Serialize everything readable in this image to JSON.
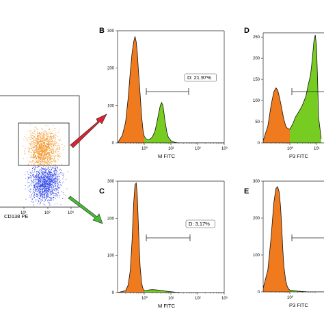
{
  "colors": {
    "positive_fill": "#77cc22",
    "negative_fill": "#f07a1e",
    "scatter_upper": "#f39324",
    "scatter_lower": "#2a40e8",
    "arrow_upper": "#e0202f",
    "arrow_lower": "#42bf30",
    "outline": "#111111"
  },
  "chart_data": [
    {
      "id": "A",
      "type": "scatter",
      "letter": "",
      "xlabel": "CD138 PE",
      "ylabel": "",
      "xscale": "log",
      "xlim": [
        1,
        1000
      ],
      "x_ticks": [
        "10¹",
        "10²",
        "10³"
      ],
      "populations": [
        {
          "name": "",
          "color": "#f39324",
          "gate": "upper rectangle",
          "x_center": 30,
          "y_level": "high"
        },
        {
          "name": "",
          "color": "#2a40e8",
          "gate": "",
          "x_center": 30,
          "y_level": "low"
        }
      ]
    },
    {
      "id": "B",
      "type": "area",
      "letter": "B",
      "xlabel": "M FITC",
      "ylabel": "",
      "xscale": "log",
      "xlim": [
        0.1,
        1000
      ],
      "ylim": [
        0,
        300
      ],
      "y_ticks": [
        0,
        100,
        200,
        300
      ],
      "x_ticks": [
        "10⁰",
        "10¹",
        "10²",
        "10³"
      ],
      "gate_label": "D: 21.97%",
      "x": [
        0.1,
        0.15,
        0.2,
        0.25,
        0.3,
        0.35,
        0.4,
        0.45,
        0.5,
        0.55,
        0.6,
        0.7,
        0.8,
        0.9,
        1.0,
        1.2,
        1.5,
        2.0,
        2.5,
        3.0,
        3.5,
        4.0,
        4.5,
        5.0,
        5.5,
        6.0,
        7.0,
        8.0,
        10,
        12,
        15,
        20,
        30,
        100,
        1000
      ],
      "values": [
        0,
        20,
        55,
        120,
        190,
        240,
        270,
        285,
        270,
        240,
        200,
        130,
        70,
        35,
        18,
        10,
        8,
        15,
        30,
        55,
        80,
        100,
        108,
        100,
        80,
        60,
        30,
        15,
        6,
        3,
        1,
        0,
        0,
        0,
        0
      ],
      "negative_until_x": 1.0
    },
    {
      "id": "C",
      "type": "area",
      "letter": "C",
      "xlabel": "M FITC",
      "ylabel": "",
      "xscale": "log",
      "xlim": [
        0.1,
        1000
      ],
      "ylim": [
        0,
        300
      ],
      "y_ticks": [
        0,
        100,
        200,
        300
      ],
      "x_ticks": [
        "10⁰",
        "10¹",
        "10²",
        "10³"
      ],
      "gate_label": "D: 3.17%",
      "x": [
        0.1,
        0.2,
        0.25,
        0.3,
        0.35,
        0.4,
        0.45,
        0.5,
        0.55,
        0.6,
        0.65,
        0.7,
        0.8,
        0.9,
        1.0,
        1.2,
        1.5,
        2.0,
        3.0,
        5.0,
        8.0,
        15,
        30,
        100,
        1000
      ],
      "values": [
        0,
        5,
        20,
        60,
        140,
        240,
        290,
        295,
        260,
        190,
        120,
        70,
        25,
        10,
        6,
        5,
        7,
        8,
        7,
        5,
        3,
        1,
        0,
        0,
        0
      ],
      "negative_until_x": 1.0
    },
    {
      "id": "D",
      "type": "area",
      "letter": "D",
      "xlabel": "P3 FITC",
      "ylabel": "",
      "xscale": "log",
      "xlim": [
        0.1,
        30
      ],
      "ylim": [
        0,
        260
      ],
      "y_ticks": [
        0,
        50,
        100,
        150,
        200,
        250
      ],
      "x_ticks": [
        "10⁰",
        "10¹"
      ],
      "x": [
        0.1,
        0.15,
        0.2,
        0.25,
        0.3,
        0.35,
        0.4,
        0.45,
        0.5,
        0.6,
        0.7,
        0.8,
        1.0,
        1.3,
        1.6,
        2.0,
        2.5,
        3.0,
        4.0,
        5.0,
        6.0,
        7.0,
        8.0,
        9.0,
        10,
        11,
        12,
        15
      ],
      "values": [
        5,
        40,
        90,
        120,
        130,
        125,
        110,
        95,
        80,
        55,
        40,
        35,
        32,
        45,
        60,
        70,
        80,
        90,
        110,
        140,
        160,
        200,
        240,
        255,
        230,
        150,
        60,
        10
      ],
      "negative_until_x": 1.0
    },
    {
      "id": "E",
      "type": "area",
      "letter": "E",
      "xlabel": "P3 FITC",
      "ylabel": "",
      "xscale": "log",
      "xlim": [
        0.1,
        30
      ],
      "ylim": [
        0,
        300
      ],
      "y_ticks": [
        0,
        100,
        200,
        300
      ],
      "x_ticks": [
        "10⁰"
      ],
      "x": [
        0.1,
        0.15,
        0.2,
        0.25,
        0.3,
        0.35,
        0.4,
        0.45,
        0.5,
        0.55,
        0.6,
        0.7,
        0.8,
        0.9,
        1.0,
        1.5,
        2.0,
        5.0,
        30
      ],
      "values": [
        10,
        60,
        150,
        240,
        280,
        285,
        270,
        230,
        170,
        110,
        70,
        30,
        15,
        8,
        5,
        3,
        2,
        0,
        0
      ],
      "negative_until_x": 1.0
    }
  ]
}
